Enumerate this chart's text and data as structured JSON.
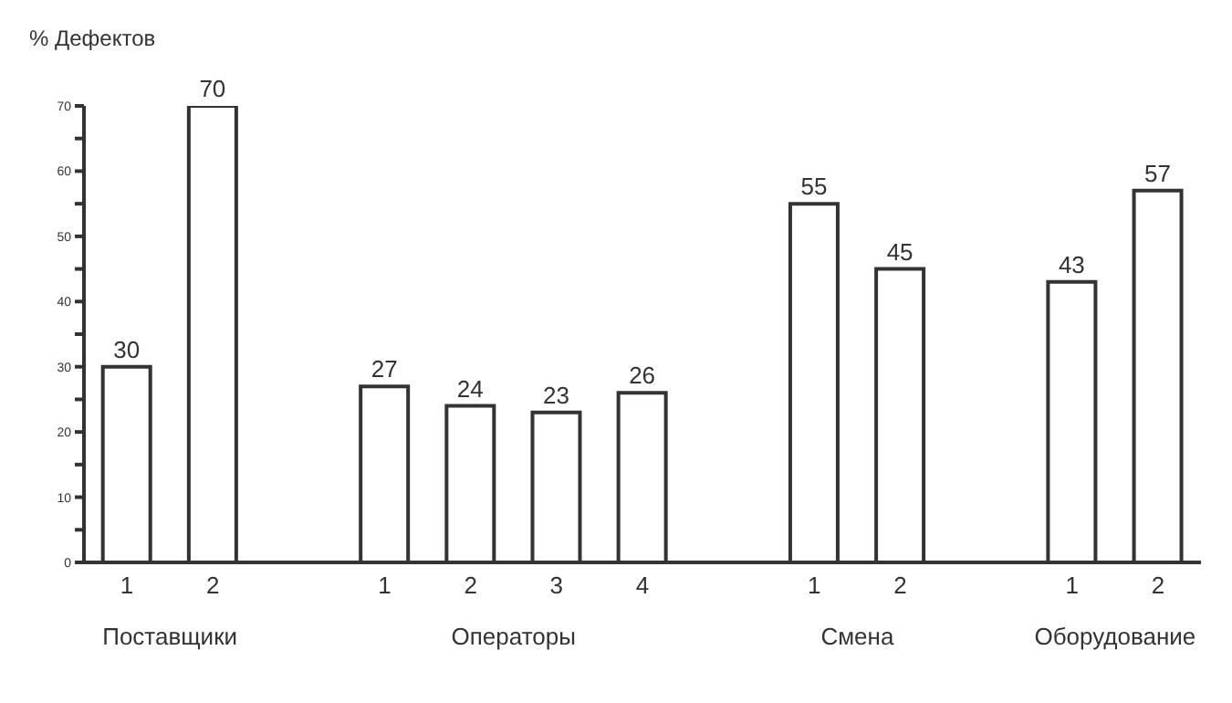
{
  "chart_data": {
    "type": "bar",
    "ylabel": "% Дефектов",
    "categories": [
      "1",
      "2",
      null,
      "1",
      "2",
      "3",
      "4",
      null,
      "1",
      "2",
      null,
      "1",
      "2"
    ],
    "values": [
      30,
      70,
      null,
      27,
      24,
      23,
      26,
      null,
      55,
      45,
      null,
      43,
      57
    ],
    "color": "#333333",
    "data_labels": true,
    "grid": false,
    "legend": false,
    "ylim": [
      0,
      70
    ],
    "yticks": [
      0,
      {
        "value": 5,
        "label": null
      },
      10,
      {
        "value": 15,
        "label": null
      },
      20,
      {
        "value": 25,
        "label": null
      },
      30,
      {
        "value": 35,
        "label": null
      },
      40,
      {
        "value": 45,
        "label": null
      },
      50,
      {
        "value": 55,
        "label": null
      },
      60,
      {
        "value": 65,
        "label": null
      },
      70
    ],
    "annotations": [
      "Поставщики",
      "Операторы",
      "Смена",
      "Оборудование"
    ]
  }
}
